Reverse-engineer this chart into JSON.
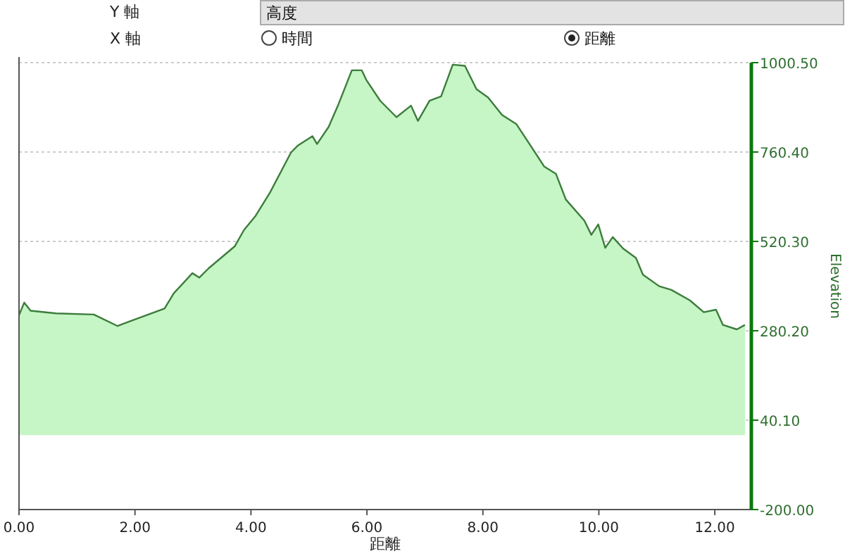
{
  "chart_data": {
    "type": "area",
    "xlabel": "距離",
    "ylabel": "Elevation",
    "annotations": [
      "Y 軸",
      "高度",
      "X 軸",
      "時間",
      "距離"
    ],
    "xlim": [
      0,
      12.63
    ],
    "xticks": [
      {
        "value": 0,
        "label": "0.00"
      },
      {
        "value": 2,
        "label": "2.00"
      },
      {
        "value": 4,
        "label": "4.00"
      },
      {
        "value": 6,
        "label": "6.00"
      },
      {
        "value": 8,
        "label": "8.00"
      },
      {
        "value": 10,
        "label": "10.00"
      },
      {
        "value": 12,
        "label": "12.00"
      }
    ],
    "ylim": [
      -200,
      1000.5
    ],
    "yticks": [
      {
        "value": -200,
        "label": "-200.00"
      },
      {
        "value": 40.1,
        "label": "40.10"
      },
      {
        "value": 280.2,
        "label": "280.20"
      },
      {
        "value": 520.3,
        "label": "520.30"
      },
      {
        "value": 760.4,
        "label": "760.40"
      },
      {
        "value": 1000.5,
        "label": "1000.50"
      }
    ],
    "grid": "y",
    "series": [
      {
        "color": "#3c7d3c",
        "x": [
          0,
          0.09,
          0.2,
          0.64,
          1.29,
          1.7,
          1.9,
          2.51,
          2.67,
          2.99,
          3.11,
          3.27,
          3.72,
          3.88,
          4.08,
          4.33,
          4.69,
          4.81,
          5.06,
          5.14,
          5.34,
          5.5,
          5.74,
          5.91,
          5.99,
          6.23,
          6.51,
          6.76,
          6.88,
          7.08,
          7.28,
          7.48,
          7.69,
          7.89,
          8.09,
          8.33,
          8.58,
          8.82,
          9.06,
          9.26,
          9.43,
          9.75,
          9.87,
          9.99,
          10.11,
          10.24,
          10.42,
          10.64,
          10.76,
          11.04,
          11.25,
          11.57,
          11.81,
          12.02,
          12.14,
          12.38,
          12.52
        ],
        "values": [
          322,
          356,
          334,
          327,
          324,
          293,
          305,
          340,
          381,
          435,
          423,
          448,
          507,
          551,
          589,
          652,
          759,
          778,
          803,
          782,
          828,
          885,
          980,
          980,
          954,
          898,
          854,
          885,
          844,
          898,
          910,
          995,
          992,
          929,
          907,
          860,
          835,
          778,
          721,
          702,
          633,
          576,
          538,
          566,
          503,
          532,
          501,
          476,
          431,
          400,
          390,
          362,
          330,
          337,
          296,
          284,
          296
        ]
      }
    ]
  }
}
